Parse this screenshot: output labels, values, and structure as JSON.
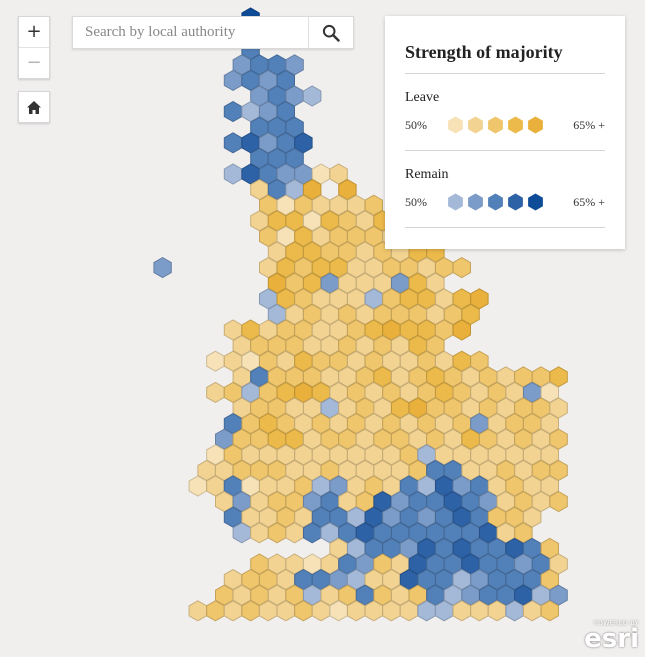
{
  "search": {
    "placeholder": "Search by local authority"
  },
  "zoom": {
    "in_label": "+",
    "out_label": "−"
  },
  "legend": {
    "title": "Strength of majority",
    "leave": {
      "label": "Leave",
      "low": "50%",
      "high": "65% +",
      "colors": [
        "#f6e2b6",
        "#f2d392",
        "#efc66c",
        "#ecba4a",
        "#e9b13b"
      ]
    },
    "remain": {
      "label": "Remain",
      "low": "50%",
      "high": "65% +",
      "colors": [
        "#a4b9d8",
        "#7b9cc8",
        "#5280b8",
        "#2d62a6",
        "#0f4c98"
      ]
    }
  },
  "attribution": {
    "powered": "POWERED BY",
    "name": "esri"
  },
  "icons": [
    "zoom-in-icon",
    "zoom-out-icon",
    "home-icon",
    "search-icon"
  ],
  "map_grid": {
    "cells": [
      "00000000000L0000000000000000000000000000000",
      "000000000000000000000000000000000000000000",
      "00000000000J000000000000000000000000000000",
      "0000000000IJJI00000000000000000000000000000",
      "0000000000IJIJ00000000000000000000000000000",
      "00000000000IJIH00000000000000000000000000000",
      "0000000000JHIJ00000000000000000000000000000",
      "00000000000JJJ00000000000000000000000000000",
      "0000000000JKIJK0000000000000000000000000000",
      "00000000000JJJ00000000000000000000000000000",
      "0000000000HKJIIAB000000000000000000000000000",
      "00000000000BJHEFE000000000000000000000000000",
      "000000000000CACBBBC0000000000000000000000000",
      "00000000000BDDADCBDE000000000000000000000000",
      "000000000000CADBCCCBC0000000000000000000000000",
      "000000000000BDDCCBCBDD0000000000000000000000000",
      "000000I00000BDCDDBBCCBCC00000000000000000000000",
      "000000000000ECDIBBBIDB0000000000000000000000000",
      "000000000000HDCBBBHCDDBDE0000000000000000000000000",
      "000000000000HBCBCBCCCBCD0000000000000000000000000",
      "0000000000BDBCCBBCDEDDCE0000000000000000000000000",
      "0000000000BCCCBBCBCBDC0000000000000000000000000",
      "000000000ABACBDCCBCBBCBDC000000000000000000000",
      "0000000000BJCCCBBCDBCDCBCBCCD000000000000000000",
      "000000000BCHCDEDBCBCBCDCBCBIA00000000000000000",
      "0000000000BCCBBHBCBDECCBCBCCBCA000000000000000",
      "0000000000JCDCBCBCBCBCBCIBCCBCB000000000000000",
      "000000000ICCDDBCCBCCBCBDCBCBCC000000000000000",
      "000000000ACBBBBBBBBBCHBBBBBBBD000000000000000",
      "00000000BBCCCBBCBBBBCJJBBCBCCBCB0000000000000",
      "00000000ABJABBCHIBCBJHKIJBCBBC0000000000000000",
      "000000000BIBCCIJBCKIJJKJIBCBCB000000000000000",
      "0000000000JBBCBJJHKIJIJKJCCB0000000000000000000",
      "0000000000HBCBJHJKJJJJJJKBC00000000000000000000",
      "0000000000000000BHJJIKJKJJKJCBC00000000000000",
      "00000000000CBBABJICBKJJKJJIJBCB000000000000000",
      "0000000000BCCBJJIHBBKJJHIJJJCBC00000000000000",
      "000000000CBCBCHBCJCBCJHIJJKHIBCBC000000000000",
      "00000000BCBCBBCBABBBBHHBBBHBCBCCC00000000000000",
      "00000000BCBBICBCBCHBJHJKJBJCBC00000000000000000",
      "000000000DBCBCBCBBCBBCIJKJBKIJBC0000000000000000",
      "0000000000BCCHCBBBBCBBBJJBBJBCBC000000000000000",
      "000000000000000000000000000JJ0000000000000000000",
      "000000000H000000000000000000000000000000000000",
      "0000000000000000000C00000000000000000000000000"
    ]
  }
}
